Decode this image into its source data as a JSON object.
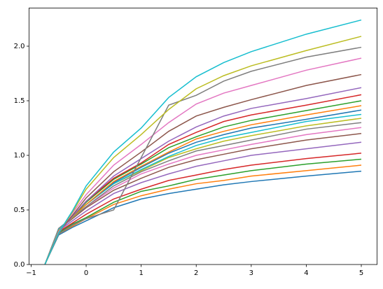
{
  "chart_data": {
    "type": "line",
    "x": [
      -0.75,
      -0.5,
      -0.25,
      0,
      0.5,
      1,
      1.5,
      2,
      2.5,
      3,
      4,
      5
    ],
    "series": [
      {
        "color": "#1f77b4",
        "values": [
          0,
          0.27,
          0.34,
          0.4,
          0.52,
          0.6,
          0.65,
          0.69,
          0.73,
          0.76,
          0.81,
          0.855
        ]
      },
      {
        "color": "#ff7f0e",
        "values": [
          0,
          0.28,
          0.35,
          0.42,
          0.55,
          0.63,
          0.69,
          0.74,
          0.77,
          0.81,
          0.86,
          0.91
        ]
      },
      {
        "color": "#2ca02c",
        "values": [
          0,
          0.29,
          0.37,
          0.43,
          0.57,
          0.67,
          0.72,
          0.78,
          0.82,
          0.86,
          0.92,
          0.965
        ]
      },
      {
        "color": "#d62728",
        "values": [
          0,
          0.3,
          0.38,
          0.46,
          0.6,
          0.69,
          0.77,
          0.82,
          0.87,
          0.91,
          0.97,
          1.02
        ]
      },
      {
        "color": "#9467bd",
        "values": [
          0,
          0.31,
          0.4,
          0.49,
          0.65,
          0.75,
          0.83,
          0.9,
          0.95,
          1.0,
          1.06,
          1.12
        ]
      },
      {
        "color": "#8c564b",
        "values": [
          0,
          0.32,
          0.42,
          0.52,
          0.68,
          0.79,
          0.89,
          0.96,
          1.01,
          1.06,
          1.14,
          1.2
        ]
      },
      {
        "color": "#e377c2",
        "values": [
          0,
          0.33,
          0.43,
          0.53,
          0.7,
          0.83,
          0.92,
          1.0,
          1.05,
          1.1,
          1.19,
          1.255
        ]
      },
      {
        "color": "#7f7f7f",
        "values": [
          0,
          0.33,
          0.43,
          0.53,
          0.72,
          0.85,
          0.95,
          1.04,
          1.09,
          1.14,
          1.24,
          1.3
        ]
      },
      {
        "color": "#bcbd22",
        "values": [
          0,
          0.32,
          0.43,
          0.55,
          0.74,
          0.86,
          0.98,
          1.06,
          1.13,
          1.18,
          1.27,
          1.34
        ]
      },
      {
        "color": "#17becf",
        "values": [
          0,
          0.32,
          0.44,
          0.55,
          0.74,
          0.87,
          0.99,
          1.09,
          1.16,
          1.21,
          1.31,
          1.375
        ]
      },
      {
        "color": "#1f77b4",
        "values": [
          0,
          0.31,
          0.44,
          0.55,
          0.75,
          0.89,
          1.02,
          1.12,
          1.19,
          1.25,
          1.33,
          1.415
        ]
      },
      {
        "color": "#ff7f0e",
        "values": [
          0,
          0.31,
          0.44,
          0.55,
          0.76,
          0.9,
          1.03,
          1.15,
          1.22,
          1.28,
          1.37,
          1.455
        ]
      },
      {
        "color": "#2ca02c",
        "values": [
          0,
          0.3,
          0.44,
          0.57,
          0.78,
          0.92,
          1.07,
          1.17,
          1.26,
          1.32,
          1.41,
          1.5
        ]
      },
      {
        "color": "#d62728",
        "values": [
          0,
          0.3,
          0.44,
          0.58,
          0.79,
          0.93,
          1.1,
          1.21,
          1.31,
          1.37,
          1.46,
          1.555
        ]
      },
      {
        "color": "#9467bd",
        "values": [
          0,
          0.29,
          0.44,
          0.58,
          0.81,
          0.97,
          1.13,
          1.26,
          1.36,
          1.43,
          1.52,
          1.62
        ]
      },
      {
        "color": "#8c564b",
        "values": [
          0,
          0.3,
          0.45,
          0.61,
          0.85,
          1.03,
          1.22,
          1.36,
          1.44,
          1.51,
          1.64,
          1.74
        ]
      },
      {
        "color": "#e377c2",
        "values": [
          0,
          0.3,
          0.47,
          0.64,
          0.91,
          1.1,
          1.3,
          1.47,
          1.57,
          1.64,
          1.78,
          1.89
        ]
      },
      {
        "color": "#7f7f7f",
        "values": [
          0,
          0.28,
          0.36,
          0.42,
          0.5,
          0.98,
          1.46,
          1.55,
          1.68,
          1.77,
          1.9,
          1.99
        ]
      },
      {
        "color": "#bcbd22",
        "values": [
          0,
          0.29,
          0.48,
          0.69,
          0.98,
          1.19,
          1.42,
          1.61,
          1.73,
          1.82,
          1.96,
          2.09
        ]
      },
      {
        "color": "#17becf",
        "values": [
          0,
          0.29,
          0.49,
          0.72,
          1.03,
          1.25,
          1.53,
          1.72,
          1.85,
          1.95,
          2.11,
          2.24
        ]
      }
    ],
    "xlim": [
      -1.0375,
      5.2875
    ],
    "ylim": [
      0,
      2.35
    ],
    "xticks": [
      {
        "value": -1,
        "label": "−1"
      },
      0,
      1,
      2,
      3,
      4,
      5
    ],
    "yticks": [
      {
        "value": 0,
        "label": "0.0"
      },
      {
        "value": 0.5,
        "label": "0.5"
      },
      {
        "value": 1,
        "label": "1.0"
      },
      {
        "value": 1.5,
        "label": "1.5"
      },
      {
        "value": 2,
        "label": "2.0"
      }
    ],
    "grid": false
  }
}
